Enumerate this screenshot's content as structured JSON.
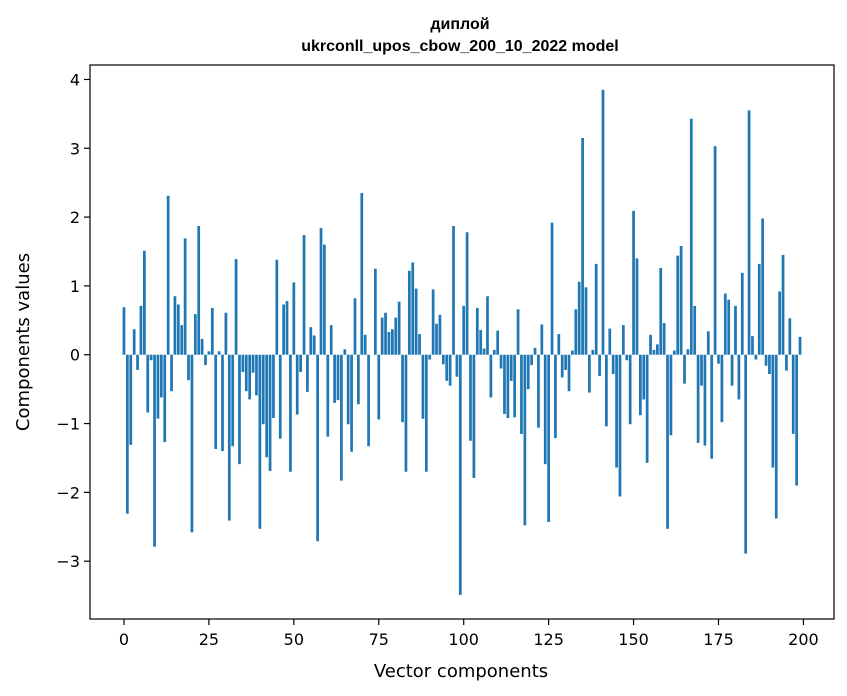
{
  "chart_data": {
    "type": "bar",
    "title_line1": "диплой",
    "title_line2": "ukrconll_upos_cbow_200_10_2022 model",
    "xlabel": "Vector components",
    "ylabel": "Components values",
    "xlim": [
      -10,
      209
    ],
    "ylim": [
      -3.84,
      4.21
    ],
    "xticks": [
      0,
      25,
      50,
      75,
      100,
      125,
      150,
      175,
      200
    ],
    "xtick_labels": [
      "0",
      "25",
      "50",
      "75",
      "100",
      "125",
      "150",
      "175",
      "200"
    ],
    "yticks": [
      -3,
      -2,
      -1,
      0,
      1,
      2,
      3,
      4
    ],
    "ytick_labels": [
      "−3",
      "−2",
      "−1",
      "0",
      "1",
      "2",
      "3",
      "4"
    ],
    "bar_color": "#1f77b4",
    "grid": false,
    "x": [
      0,
      1,
      2,
      3,
      4,
      5,
      6,
      7,
      8,
      9,
      10,
      11,
      12,
      13,
      14,
      15,
      16,
      17,
      18,
      19,
      20,
      21,
      22,
      23,
      24,
      25,
      26,
      27,
      28,
      29,
      30,
      31,
      32,
      33,
      34,
      35,
      36,
      37,
      38,
      39,
      40,
      41,
      42,
      43,
      44,
      45,
      46,
      47,
      48,
      49,
      50,
      51,
      52,
      53,
      54,
      55,
      56,
      57,
      58,
      59,
      60,
      61,
      62,
      63,
      64,
      65,
      66,
      67,
      68,
      69,
      70,
      71,
      72,
      73,
      74,
      75,
      76,
      77,
      78,
      79,
      80,
      81,
      82,
      83,
      84,
      85,
      86,
      87,
      88,
      89,
      90,
      91,
      92,
      93,
      94,
      95,
      96,
      97,
      98,
      99,
      100,
      101,
      102,
      103,
      104,
      105,
      106,
      107,
      108,
      109,
      110,
      111,
      112,
      113,
      114,
      115,
      116,
      117,
      118,
      119,
      120,
      121,
      122,
      123,
      124,
      125,
      126,
      127,
      128,
      129,
      130,
      131,
      132,
      133,
      134,
      135,
      136,
      137,
      138,
      139,
      140,
      141,
      142,
      143,
      144,
      145,
      146,
      147,
      148,
      149,
      150,
      151,
      152,
      153,
      154,
      155,
      156,
      157,
      158,
      159,
      160,
      161,
      162,
      163,
      164,
      165,
      166,
      167,
      168,
      169,
      170,
      171,
      172,
      173,
      174,
      175,
      176,
      177,
      178,
      179,
      180,
      181,
      182,
      183,
      184,
      185,
      186,
      187,
      188,
      189,
      190,
      191,
      192,
      193,
      194,
      195,
      196,
      197,
      198,
      199
    ],
    "values": [
      0.69,
      -2.31,
      -1.31,
      0.37,
      -0.22,
      0.71,
      1.51,
      -0.84,
      -0.08,
      -2.79,
      -0.93,
      -0.62,
      -1.27,
      2.31,
      -0.53,
      0.85,
      0.73,
      0.43,
      1.69,
      -0.37,
      -2.58,
      0.59,
      1.87,
      0.23,
      -0.15,
      0.05,
      0.68,
      -1.37,
      0.05,
      -1.4,
      0.61,
      -2.41,
      -1.33,
      1.39,
      -1.59,
      -0.25,
      -0.53,
      -0.65,
      -0.26,
      -0.59,
      -2.53,
      -1.01,
      -1.49,
      -1.69,
      -0.92,
      1.38,
      -1.22,
      0.73,
      0.78,
      -1.7,
      1.05,
      -0.87,
      -0.25,
      1.74,
      -0.54,
      0.4,
      0.28,
      -2.71,
      1.84,
      1.6,
      -1.19,
      0.43,
      -0.7,
      -0.66,
      -1.83,
      0.08,
      -1.01,
      -1.41,
      0.82,
      -0.72,
      2.35,
      0.29,
      -1.33,
      0.0,
      1.25,
      -0.94,
      0.54,
      0.61,
      0.33,
      0.37,
      0.54,
      0.77,
      -0.98,
      -1.7,
      1.22,
      1.34,
      0.96,
      0.3,
      -0.93,
      -1.7,
      -0.07,
      0.95,
      0.45,
      0.58,
      -0.14,
      -0.38,
      -0.45,
      1.87,
      -0.32,
      -3.49,
      0.71,
      1.78,
      -1.25,
      -1.79,
      0.68,
      0.36,
      0.09,
      0.85,
      -0.62,
      0.07,
      0.35,
      -0.2,
      -0.86,
      -0.92,
      -0.38,
      -0.91,
      0.66,
      -1.15,
      -2.48,
      -0.5,
      -0.15,
      0.1,
      -1.06,
      0.44,
      -1.59,
      -2.43,
      1.92,
      -1.21,
      0.3,
      -0.33,
      -0.22,
      -0.53,
      0.06,
      0.66,
      1.06,
      3.15,
      0.98,
      -0.55,
      0.07,
      1.32,
      -0.31,
      3.85,
      -1.04,
      0.38,
      -0.28,
      -1.64,
      -2.06,
      0.43,
      -0.08,
      -1.01,
      2.09,
      1.4,
      -0.88,
      -0.65,
      -1.57,
      0.29,
      0.07,
      0.15,
      1.26,
      0.46,
      -2.53,
      -1.17,
      0.06,
      1.44,
      1.58,
      -0.42,
      0.08,
      3.43,
      0.71,
      -1.28,
      -0.45,
      -1.32,
      0.34,
      -1.51,
      3.03,
      -0.13,
      -0.98,
      0.89,
      0.8,
      -0.45,
      0.71,
      -0.65,
      1.19,
      -2.89,
      3.55,
      0.27,
      -0.07,
      1.32,
      1.98,
      -0.16,
      -0.28,
      -1.64,
      -2.38,
      0.92,
      1.45,
      -0.23,
      0.53,
      -1.15,
      -1.9,
      0.26
    ]
  }
}
